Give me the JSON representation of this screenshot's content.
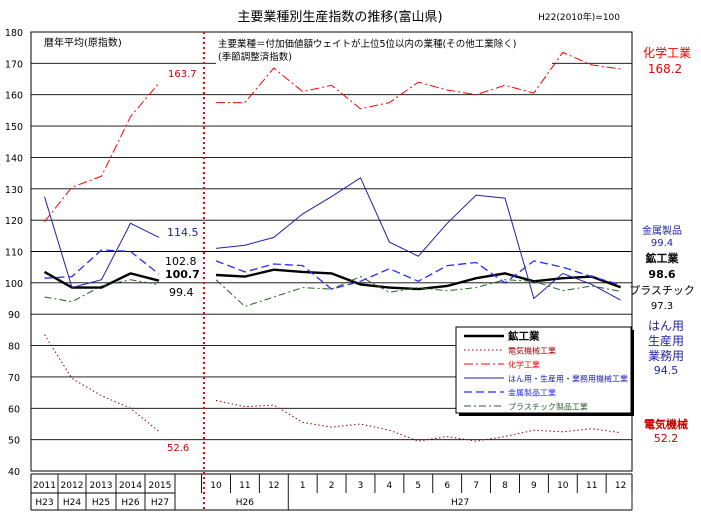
{
  "chart_data": {
    "type": "line",
    "title": "主要業種別生産指数の推移(富山県)",
    "base_note": "H22(2010年)=100",
    "ylim": [
      40,
      180
    ],
    "yticks": [
      "40",
      "50",
      "60",
      "70",
      "80",
      "90",
      "100",
      "110",
      "120",
      "130",
      "140",
      "150",
      "160",
      "170",
      "180"
    ],
    "grid": true,
    "annual_note": "暦年平均(原指数)",
    "monthly_note_1": "主要業種＝付加価値額ウェイトが上位5位以内の業種(その他工業除く)",
    "monthly_note_2": "(季節調整済指数)",
    "annual_labels": [
      "2011",
      "2012",
      "2013",
      "2014",
      "2015"
    ],
    "annual_era": [
      "H23",
      "H24",
      "H25",
      "H26",
      "H27"
    ],
    "monthly_labels": [
      "10",
      "11",
      "12",
      "1",
      "2",
      "3",
      "4",
      "5",
      "6",
      "7",
      "8",
      "9",
      "10",
      "11",
      "12"
    ],
    "monthly_era": [
      {
        "label": "H26",
        "start": 0,
        "end": 3
      },
      {
        "label": "H27",
        "start": 3,
        "end": 15
      }
    ],
    "legend_placement": "lower-right",
    "series": [
      {
        "name": "鉱工業",
        "color": "#000000",
        "dash": "",
        "width": 2.4,
        "annual": [
          103.5,
          98.5,
          98.5,
          103,
          100.7
        ],
        "monthly": [
          102.5,
          102,
          104.2,
          103.5,
          103,
          99.5,
          98.5,
          98,
          99,
          101.5,
          103,
          100.5,
          101.5,
          102,
          98.6
        ]
      },
      {
        "name": "電気機械工業",
        "color": "#990000",
        "dash": "1.5,2.5",
        "width": 1,
        "annual": [
          83.5,
          69.5,
          64,
          60,
          52.6
        ],
        "monthly": [
          62.5,
          60.5,
          61,
          55.5,
          54,
          55,
          53,
          49.5,
          51,
          49.5,
          51,
          53,
          52.5,
          53.5,
          52.2
        ]
      },
      {
        "name": "化学工業",
        "color": "#ff0000",
        "dash": "9,3,2,3",
        "width": 1,
        "annual": [
          119.5,
          130.5,
          134,
          153,
          163.7
        ],
        "monthly": [
          157.5,
          157.5,
          168.5,
          161,
          163,
          155.5,
          157.5,
          164,
          161.5,
          160,
          163,
          160.5,
          173.5,
          169.5,
          168.2
        ]
      },
      {
        "name": "はん用・生産用・業務用機械工業",
        "color": "#1f1fa8",
        "dash": "",
        "width": 1,
        "annual": [
          127.5,
          98.5,
          101,
          119,
          114.5
        ],
        "monthly": [
          111,
          112,
          114.5,
          122,
          127.5,
          133.5,
          113,
          108.5,
          119,
          128,
          127,
          95,
          103,
          99.5,
          94.5
        ]
      },
      {
        "name": "金属製品工業",
        "color": "#2a2aff",
        "dash": "8,4",
        "width": 1.3,
        "annual": [
          101.5,
          102,
          110.5,
          110,
          102.8
        ],
        "monthly": [
          107,
          103.5,
          106,
          105.5,
          98,
          100.5,
          104.5,
          100.5,
          105.5,
          106.5,
          100,
          107,
          105,
          102,
          99.4
        ]
      },
      {
        "name": "プラスチック製品工業",
        "color": "#2b5e2b",
        "dash": "7,3,2,3",
        "width": 1,
        "annual": [
          95.5,
          94,
          99,
          101,
          99.4
        ],
        "monthly": [
          101,
          92.5,
          95.5,
          98.5,
          98,
          102,
          97,
          98.5,
          97.5,
          98.5,
          101,
          100.5,
          97.5,
          99,
          97.3
        ]
      }
    ],
    "annotations": [
      {
        "text": "163.7",
        "color": "#cc0000",
        "size": 10,
        "bold": false
      },
      {
        "text": "114.5",
        "color": "#1f1fa8",
        "size": 11,
        "bold": false
      },
      {
        "text": "102.8",
        "color": "#000000",
        "size": 11,
        "bold": false
      },
      {
        "text": "100.7",
        "color": "#000000",
        "size": 11,
        "bold": true
      },
      {
        "text": "99.4",
        "color": "#000000",
        "size": 11,
        "bold": false
      },
      {
        "text": "52.6",
        "color": "#cc0000",
        "size": 10,
        "bold": false
      },
      {
        "text": "化学工業",
        "color": "#ee0000",
        "size": 12,
        "bold": false
      },
      {
        "text": "168.2",
        "color": "#ee0000",
        "size": 12,
        "bold": false
      },
      {
        "text": "金属製品",
        "color": "#1f1fa8",
        "size": 10,
        "bold": false
      },
      {
        "text": "99.4",
        "color": "#1f1fa8",
        "size": 10,
        "bold": false
      },
      {
        "text": "鉱工業",
        "color": "#000000",
        "size": 11,
        "bold": true
      },
      {
        "text": "98.6",
        "color": "#000000",
        "size": 11,
        "bold": true
      },
      {
        "text": "プラスチック",
        "color": "#000000",
        "size": 11,
        "bold": false
      },
      {
        "text": "97.3",
        "color": "#000000",
        "size": 10,
        "bold": false
      },
      {
        "text": "はん用",
        "color": "#1f1fa8",
        "size": 12,
        "bold": false
      },
      {
        "text": "生産用",
        "color": "#1f1fa8",
        "size": 12,
        "bold": false
      },
      {
        "text": "業務用",
        "color": "#1f1fa8",
        "size": 12,
        "bold": false
      },
      {
        "text": "94.5",
        "color": "#1f1fa8",
        "size": 11,
        "bold": false
      },
      {
        "text": "電気機械",
        "color": "#cc0000",
        "size": 11,
        "bold": true
      },
      {
        "text": "52.2",
        "color": "#cc0000",
        "size": 11,
        "bold": false
      }
    ]
  }
}
